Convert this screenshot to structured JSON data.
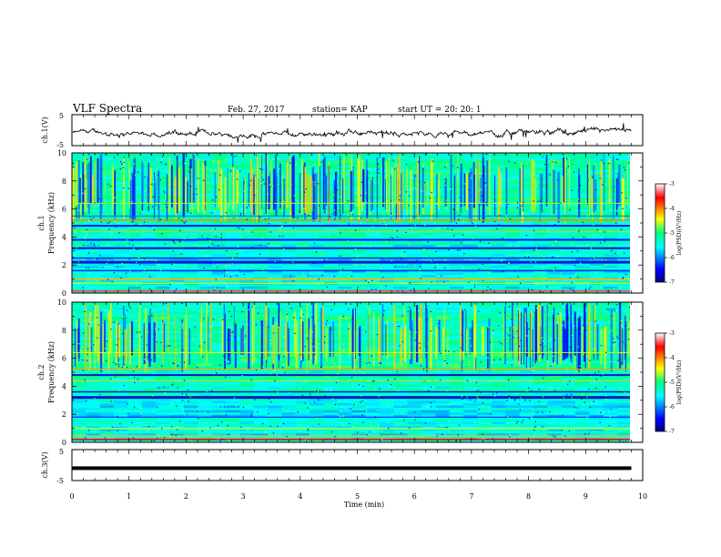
{
  "header": {
    "title": "VLF Spectra",
    "date": "Feb. 27, 2017",
    "station": "station= KAP",
    "start": "start  UT =   20: 20: 1"
  },
  "chart_data": [
    {
      "type": "line",
      "ylabel": "ch.1(V)",
      "ytick_labels": [
        "5",
        "-5"
      ],
      "ylim": [
        -5,
        5
      ],
      "xlim": [
        0,
        10
      ],
      "x_end": 9.8,
      "trace": "noisy waveform around -1 V, amplitude ~1.5 V",
      "color": "#000000"
    },
    {
      "type": "heatmap",
      "ylabel": "Frequency  (kHz)",
      "channel_label": "ch.1",
      "yticks": [
        0,
        2,
        4,
        6,
        8,
        10
      ],
      "ylim": [
        0,
        10
      ],
      "xlim": [
        0,
        10
      ],
      "x_end": 9.8,
      "colorbar": {
        "label": "log(PSD)(V²/Hz)",
        "ticks": [
          -3,
          -4,
          -5,
          -6,
          -7
        ],
        "range": [
          -7,
          -3
        ]
      },
      "features": "strong bands near 0.1, 0.7, 1.0, 2.2, 3.2, 3.8, 4.8, 5.2 kHz; vertical impulsive streaks above 5 kHz"
    },
    {
      "type": "heatmap",
      "ylabel": "Frequency  (kHz)",
      "channel_label": "ch.2",
      "yticks": [
        0,
        2,
        4,
        6,
        8,
        10
      ],
      "ylim": [
        0,
        10
      ],
      "xlim": [
        0,
        10
      ],
      "x_end": 9.8,
      "colorbar": {
        "label": "log(PSD)(V²/Hz)",
        "ticks": [
          -3,
          -4,
          -5,
          -6,
          -7
        ],
        "range": [
          -7,
          -3
        ]
      },
      "features": "strong bands near 0.2, 0.4, 1.0, 3.2, 4.8, 6.4 kHz; vertical streaks above 5 kHz"
    },
    {
      "type": "line",
      "ylabel": "ch.3(V)",
      "ytick_labels": [
        "5",
        "-5"
      ],
      "ylim": [
        -5,
        5
      ],
      "xlim": [
        0,
        10
      ],
      "x_end": 9.8,
      "value": -1,
      "trace": "flat thick line at about -1 V",
      "color": "#000000"
    }
  ],
  "x_axis": {
    "label": "Time  (min)",
    "ticks": [
      0,
      1,
      2,
      3,
      4,
      5,
      6,
      7,
      8,
      9,
      10
    ]
  }
}
